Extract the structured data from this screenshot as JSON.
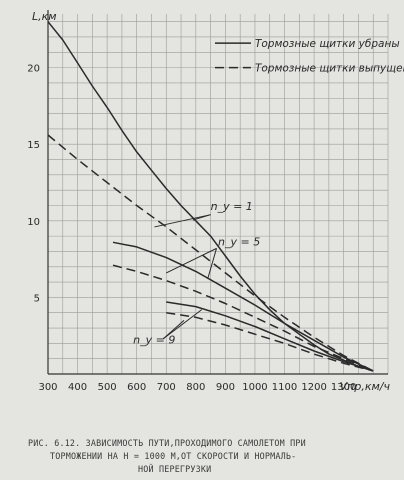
{
  "chart_data": {
    "type": "line",
    "ylabel": "L,км",
    "xlabel": "Vпр,км/ч",
    "xlim": [
      300,
      1450
    ],
    "ylim": [
      0,
      23.5
    ],
    "x_ticks": [
      300,
      400,
      500,
      600,
      700,
      800,
      900,
      1000,
      1100,
      1200,
      1300
    ],
    "x_tick_labels": [
      "300",
      "400",
      "500",
      "600",
      "700",
      "800",
      "900",
      "1000",
      "1100",
      "1200",
      "1300"
    ],
    "y_ticks": [
      5,
      10,
      15,
      20
    ],
    "y_tick_labels": [
      "5",
      "10",
      "15",
      "20"
    ],
    "grid": true,
    "legend": {
      "placement": "top-right",
      "solid": "Тормозные щитки убраны",
      "dashed": "Тормозные щитки выпущены"
    },
    "annotations": {
      "ny1": "n_y = 1",
      "ny5": "n_y = 5",
      "ny9": "n_y = 9"
    },
    "series": [
      {
        "style": "solid",
        "group": "ny1",
        "x": [
          300,
          350,
          400,
          450,
          500,
          550,
          600,
          650,
          700,
          750,
          800,
          850,
          900,
          950,
          1000,
          1050,
          1100,
          1150,
          1200,
          1250,
          1300,
          1350,
          1400
        ],
        "y": [
          23,
          21.8,
          20.3,
          18.8,
          17.4,
          15.9,
          14.5,
          13.3,
          12.1,
          11.0,
          10.0,
          9.0,
          7.7,
          6.4,
          5.2,
          4.2,
          3.3,
          2.6,
          1.9,
          1.3,
          0.9,
          0.5,
          0.2
        ]
      },
      {
        "style": "dashed",
        "group": "ny1",
        "x": [
          300,
          400,
          500,
          600,
          700,
          800,
          900,
          1000,
          1100,
          1200,
          1300,
          1400
        ],
        "y": [
          15.6,
          14.0,
          12.5,
          11.0,
          9.6,
          8.1,
          6.6,
          5.1,
          3.7,
          2.4,
          1.2,
          0.2
        ]
      },
      {
        "style": "solid",
        "group": "ny5",
        "x": [
          520,
          600,
          700,
          800,
          900,
          1000,
          1100,
          1200,
          1300,
          1400
        ],
        "y": [
          8.6,
          8.3,
          7.6,
          6.7,
          5.6,
          4.5,
          3.3,
          2.2,
          1.1,
          0.2
        ]
      },
      {
        "style": "dashed",
        "group": "ny5",
        "x": [
          520,
          600,
          700,
          800,
          900,
          1000,
          1100,
          1200,
          1300,
          1400
        ],
        "y": [
          7.1,
          6.7,
          6.1,
          5.4,
          4.6,
          3.7,
          2.8,
          1.8,
          1.0,
          0.2
        ]
      },
      {
        "style": "solid",
        "group": "ny9",
        "x": [
          700,
          800,
          900,
          1000,
          1100,
          1200,
          1300,
          1400
        ],
        "y": [
          4.7,
          4.4,
          3.8,
          3.1,
          2.3,
          1.5,
          0.8,
          0.2
        ]
      },
      {
        "style": "dashed",
        "group": "ny9",
        "x": [
          700,
          800,
          900,
          1000,
          1100,
          1200,
          1300,
          1400
        ],
        "y": [
          4.0,
          3.7,
          3.2,
          2.6,
          2.0,
          1.3,
          0.7,
          0.2
        ]
      }
    ]
  },
  "caption": {
    "line1": "РИС. 6.12. ЗАВИСИМОСТЬ ПУТИ,ПРОХОДИМОГО САМОЛЕТОМ ПРИ",
    "line2": "ТОРМОЖЕНИИ НА Н = 1000 М,ОТ СКОРОСТИ И НОРМАЛЬ-",
    "line3": "НОЙ ПЕРЕГРУЗКИ"
  }
}
